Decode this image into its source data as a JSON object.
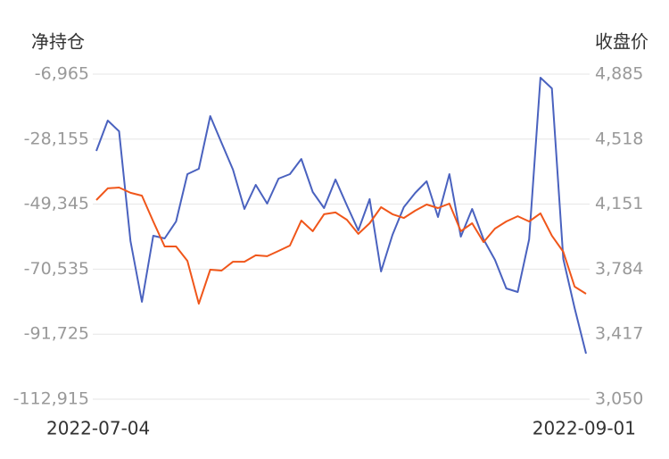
{
  "chart_data": {
    "type": "line",
    "y_label": "净持仓",
    "y2_label": "收盘价",
    "categories": [
      "2022-07-04",
      null,
      null,
      null,
      null,
      null,
      null,
      null,
      null,
      null,
      null,
      null,
      null,
      null,
      null,
      null,
      null,
      null,
      null,
      null,
      null,
      null,
      null,
      null,
      null,
      null,
      null,
      null,
      null,
      null,
      null,
      null,
      null,
      null,
      null,
      null,
      null,
      null,
      null,
      null,
      null,
      null,
      null,
      "2022-09-01"
    ],
    "ylim": [
      -112915,
      -6965
    ],
    "yticks": [
      {
        "value": -6965,
        "label": "-6,965"
      },
      {
        "value": -28155,
        "label": "-28,155"
      },
      {
        "value": -49345,
        "label": "-49,345"
      },
      {
        "value": -70535,
        "label": "-70,535"
      },
      {
        "value": -91725,
        "label": "-91,725"
      },
      {
        "value": -112915,
        "label": "-112,915"
      }
    ],
    "y2lim": [
      3050,
      4885
    ],
    "y2ticks": [
      {
        "value": 4885,
        "label": "4,885"
      },
      {
        "value": 4518,
        "label": "4,518"
      },
      {
        "value": 4151,
        "label": "4,151"
      },
      {
        "value": 3784,
        "label": "3,784"
      },
      {
        "value": 3417,
        "label": "3,417"
      },
      {
        "value": 3050,
        "label": "3,050"
      }
    ],
    "grid": true,
    "series": [
      {
        "color": "#4a62bf",
        "axis": "y",
        "values": [
          -31997,
          -22100,
          -25594,
          -61395,
          -81188,
          -59649,
          -60522,
          -54992,
          -39565,
          -37818,
          -20645,
          -29377,
          -38109,
          -50916,
          -43058,
          -49171,
          -41021,
          -39565,
          -34617,
          -45387,
          -50625,
          -41312,
          -49753,
          -57903,
          -47715,
          -71292,
          -59358,
          -50334,
          -45677,
          -41895,
          -53537,
          -39565,
          -59940,
          -50916,
          -60813,
          -67508,
          -76822,
          -77987,
          -60813,
          -8129,
          -11622,
          -67217,
          -83226,
          -98071
        ]
      },
      {
        "color": "#f0561a",
        "axis": "y2",
        "values": [
          4174,
          4240,
          4245,
          4215,
          4199,
          4053,
          3912,
          3912,
          3831,
          3589,
          3781,
          3776,
          3826,
          3826,
          3862,
          3857,
          3887,
          3917,
          4058,
          3998,
          4094,
          4104,
          4063,
          3983,
          4043,
          4134,
          4094,
          4073,
          4114,
          4149,
          4129,
          4154,
          3998,
          4043,
          3937,
          4013,
          4053,
          4083,
          4053,
          4099,
          3973,
          3882,
          3685,
          3645
        ]
      }
    ]
  }
}
